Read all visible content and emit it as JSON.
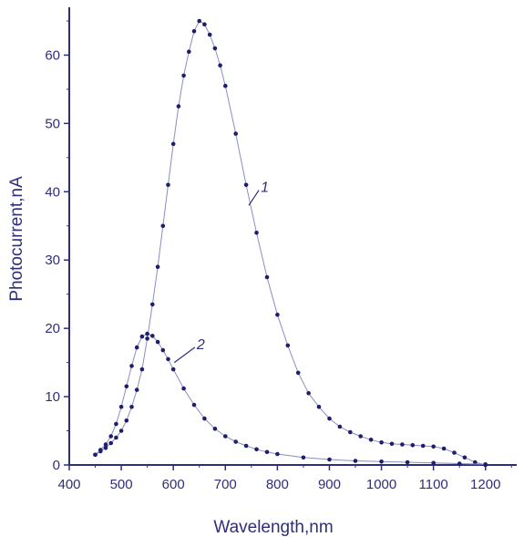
{
  "chart_data": {
    "type": "scatter",
    "title": "",
    "xlabel": "Wavelength,nm",
    "ylabel": "Photocurrent,nA",
    "xlim": [
      400,
      1260
    ],
    "ylim": [
      0,
      67
    ],
    "xticks": [
      400,
      500,
      600,
      700,
      800,
      900,
      1000,
      1100,
      1200
    ],
    "yticks": [
      0,
      10,
      20,
      30,
      40,
      50,
      60
    ],
    "grid": false,
    "legend": "none",
    "colors": {
      "axis": "#2e2e7a",
      "points": "#1e1e6e",
      "line": "#8c8cc0"
    },
    "series": [
      {
        "name": "1",
        "x": [
          450,
          460,
          470,
          480,
          490,
          500,
          510,
          520,
          530,
          540,
          550,
          560,
          570,
          580,
          590,
          600,
          610,
          620,
          630,
          640,
          650,
          660,
          670,
          680,
          690,
          700,
          720,
          740,
          760,
          780,
          800,
          820,
          840,
          860,
          880,
          900,
          920,
          940,
          960,
          980,
          1000,
          1020,
          1040,
          1060,
          1080,
          1100,
          1120,
          1140,
          1160,
          1180,
          1200
        ],
        "y": [
          1.5,
          2,
          2.5,
          3.2,
          4,
          5,
          6.5,
          8.5,
          11,
          14,
          18.5,
          23.5,
          29,
          35,
          41,
          47,
          52.5,
          57,
          60.5,
          63.5,
          65,
          64.5,
          63,
          61,
          58.5,
          55.5,
          48.5,
          41,
          34,
          27.5,
          22,
          17.5,
          13.5,
          10.5,
          8.5,
          6.8,
          5.6,
          4.8,
          4.2,
          3.7,
          3.3,
          3.1,
          3.0,
          2.9,
          2.8,
          2.7,
          2.4,
          1.8,
          1.1,
          0.4,
          0
        ]
      },
      {
        "name": "2",
        "x": [
          450,
          460,
          470,
          480,
          490,
          500,
          510,
          520,
          530,
          540,
          550,
          560,
          570,
          580,
          590,
          600,
          620,
          640,
          660,
          680,
          700,
          720,
          740,
          760,
          780,
          800,
          850,
          900,
          950,
          1000,
          1050,
          1100,
          1150,
          1200
        ],
        "y": [
          1.5,
          2.2,
          3,
          4.2,
          6,
          8.5,
          11.5,
          14.5,
          17.2,
          18.8,
          19.2,
          18.9,
          18,
          16.8,
          15.5,
          14,
          11.2,
          8.8,
          6.8,
          5.3,
          4.2,
          3.4,
          2.8,
          2.3,
          1.9,
          1.6,
          1.1,
          0.8,
          0.6,
          0.5,
          0.4,
          0.3,
          0.2,
          0.1
        ]
      }
    ],
    "annotations": [
      {
        "text": "1",
        "x": 768,
        "y": 40.5,
        "target_x": 745,
        "target_y": 38
      },
      {
        "text": "2",
        "x": 645,
        "y": 17.5,
        "target_x": 602,
        "target_y": 15
      }
    ]
  }
}
